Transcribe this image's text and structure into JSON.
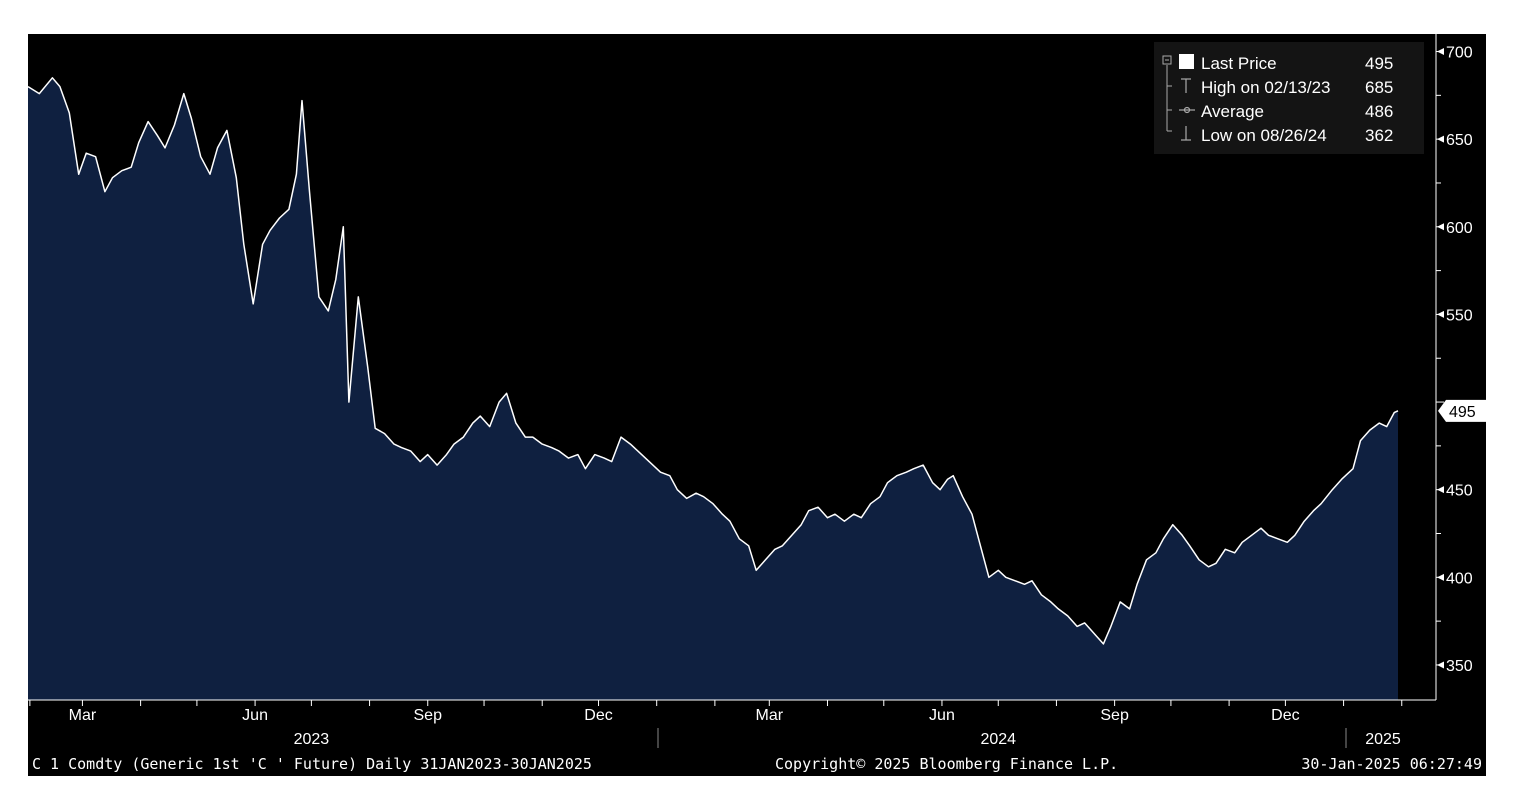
{
  "chart_data": {
    "type": "area",
    "title": "",
    "xlabel": "",
    "ylabel": "",
    "ylim": [
      330,
      710
    ],
    "y_ticks": [
      350,
      400,
      450,
      550,
      600,
      650,
      700
    ],
    "grid": false,
    "legend_position": "top-right",
    "colors": {
      "background": "#000000",
      "fill": "#0f2040",
      "line": "#ffffff"
    },
    "x_month_labels": [
      {
        "date": "2023-03-01",
        "label": "Mar"
      },
      {
        "date": "2023-06-01",
        "label": "Jun"
      },
      {
        "date": "2023-09-01",
        "label": "Sep"
      },
      {
        "date": "2023-12-01",
        "label": "Dec"
      },
      {
        "date": "2024-03-01",
        "label": "Mar"
      },
      {
        "date": "2024-06-01",
        "label": "Jun"
      },
      {
        "date": "2024-09-01",
        "label": "Sep"
      },
      {
        "date": "2024-12-01",
        "label": "Dec"
      }
    ],
    "x_year_labels": [
      {
        "date": "2023-07-01",
        "label": "2023"
      },
      {
        "date": "2024-07-01",
        "label": "2024"
      },
      {
        "date": "2025-01-22",
        "label": "2025"
      }
    ],
    "last_price_tag": "495",
    "legend": [
      {
        "label": "Last Price",
        "value": "495"
      },
      {
        "label": "High on 02/13/23",
        "value": "685"
      },
      {
        "label": "Average",
        "value": "486"
      },
      {
        "label": "Low on 08/26/24",
        "value": "362"
      }
    ],
    "series": [
      {
        "name": "Last Price",
        "points": [
          [
            "2023-01-31",
            680
          ],
          [
            "2023-02-06",
            676
          ],
          [
            "2023-02-13",
            685
          ],
          [
            "2023-02-17",
            680
          ],
          [
            "2023-02-22",
            665
          ],
          [
            "2023-02-27",
            630
          ],
          [
            "2023-03-03",
            642
          ],
          [
            "2023-03-08",
            640
          ],
          [
            "2023-03-13",
            620
          ],
          [
            "2023-03-17",
            628
          ],
          [
            "2023-03-22",
            632
          ],
          [
            "2023-03-27",
            634
          ],
          [
            "2023-03-31",
            648
          ],
          [
            "2023-04-05",
            660
          ],
          [
            "2023-04-10",
            652
          ],
          [
            "2023-04-14",
            645
          ],
          [
            "2023-04-19",
            658
          ],
          [
            "2023-04-24",
            676
          ],
          [
            "2023-04-28",
            662
          ],
          [
            "2023-05-03",
            640
          ],
          [
            "2023-05-08",
            630
          ],
          [
            "2023-05-12",
            645
          ],
          [
            "2023-05-17",
            655
          ],
          [
            "2023-05-22",
            628
          ],
          [
            "2023-05-26",
            590
          ],
          [
            "2023-05-31",
            556
          ],
          [
            "2023-06-05",
            590
          ],
          [
            "2023-06-09",
            598
          ],
          [
            "2023-06-14",
            605
          ],
          [
            "2023-06-19",
            610
          ],
          [
            "2023-06-23",
            630
          ],
          [
            "2023-06-26",
            672
          ],
          [
            "2023-06-30",
            620
          ],
          [
            "2023-07-05",
            560
          ],
          [
            "2023-07-10",
            552
          ],
          [
            "2023-07-14",
            570
          ],
          [
            "2023-07-18",
            600
          ],
          [
            "2023-07-21",
            500
          ],
          [
            "2023-07-26",
            560
          ],
          [
            "2023-07-31",
            520
          ],
          [
            "2023-08-04",
            485
          ],
          [
            "2023-08-09",
            482
          ],
          [
            "2023-08-14",
            476
          ],
          [
            "2023-08-18",
            474
          ],
          [
            "2023-08-23",
            472
          ],
          [
            "2023-08-28",
            466
          ],
          [
            "2023-09-01",
            470
          ],
          [
            "2023-09-06",
            464
          ],
          [
            "2023-09-11",
            470
          ],
          [
            "2023-09-15",
            476
          ],
          [
            "2023-09-20",
            480
          ],
          [
            "2023-09-25",
            488
          ],
          [
            "2023-09-29",
            492
          ],
          [
            "2023-10-04",
            486
          ],
          [
            "2023-10-09",
            500
          ],
          [
            "2023-10-13",
            505
          ],
          [
            "2023-10-18",
            488
          ],
          [
            "2023-10-23",
            480
          ],
          [
            "2023-10-27",
            480
          ],
          [
            "2023-11-01",
            476
          ],
          [
            "2023-11-06",
            474
          ],
          [
            "2023-11-10",
            472
          ],
          [
            "2023-11-15",
            468
          ],
          [
            "2023-11-20",
            470
          ],
          [
            "2023-11-24",
            462
          ],
          [
            "2023-11-29",
            470
          ],
          [
            "2023-12-04",
            468
          ],
          [
            "2023-12-08",
            466
          ],
          [
            "2023-12-13",
            480
          ],
          [
            "2023-12-18",
            476
          ],
          [
            "2023-12-22",
            472
          ],
          [
            "2024-01-03",
            460
          ],
          [
            "2024-01-08",
            458
          ],
          [
            "2024-01-12",
            450
          ],
          [
            "2024-01-17",
            445
          ],
          [
            "2024-01-22",
            448
          ],
          [
            "2024-01-26",
            446
          ],
          [
            "2024-01-31",
            442
          ],
          [
            "2024-02-05",
            436
          ],
          [
            "2024-02-09",
            432
          ],
          [
            "2024-02-14",
            422
          ],
          [
            "2024-02-19",
            418
          ],
          [
            "2024-02-23",
            404
          ],
          [
            "2024-02-28",
            410
          ],
          [
            "2024-03-04",
            416
          ],
          [
            "2024-03-08",
            418
          ],
          [
            "2024-03-13",
            424
          ],
          [
            "2024-03-18",
            430
          ],
          [
            "2024-03-22",
            438
          ],
          [
            "2024-03-27",
            440
          ],
          [
            "2024-04-01",
            434
          ],
          [
            "2024-04-05",
            436
          ],
          [
            "2024-04-10",
            432
          ],
          [
            "2024-04-15",
            436
          ],
          [
            "2024-04-19",
            434
          ],
          [
            "2024-04-24",
            442
          ],
          [
            "2024-04-29",
            446
          ],
          [
            "2024-05-03",
            454
          ],
          [
            "2024-05-08",
            458
          ],
          [
            "2024-05-13",
            460
          ],
          [
            "2024-05-17",
            462
          ],
          [
            "2024-05-22",
            464
          ],
          [
            "2024-05-27",
            454
          ],
          [
            "2024-05-31",
            450
          ],
          [
            "2024-06-04",
            456
          ],
          [
            "2024-06-07",
            458
          ],
          [
            "2024-06-12",
            446
          ],
          [
            "2024-06-17",
            436
          ],
          [
            "2024-06-21",
            420
          ],
          [
            "2024-06-26",
            400
          ],
          [
            "2024-07-01",
            404
          ],
          [
            "2024-07-05",
            400
          ],
          [
            "2024-07-10",
            398
          ],
          [
            "2024-07-15",
            396
          ],
          [
            "2024-07-19",
            398
          ],
          [
            "2024-07-24",
            390
          ],
          [
            "2024-07-29",
            386
          ],
          [
            "2024-08-02",
            382
          ],
          [
            "2024-08-07",
            378
          ],
          [
            "2024-08-12",
            372
          ],
          [
            "2024-08-16",
            374
          ],
          [
            "2024-08-21",
            368
          ],
          [
            "2024-08-26",
            362
          ],
          [
            "2024-08-30",
            372
          ],
          [
            "2024-09-04",
            386
          ],
          [
            "2024-09-09",
            382
          ],
          [
            "2024-09-13",
            396
          ],
          [
            "2024-09-18",
            410
          ],
          [
            "2024-09-23",
            414
          ],
          [
            "2024-09-27",
            422
          ],
          [
            "2024-10-02",
            430
          ],
          [
            "2024-10-07",
            424
          ],
          [
            "2024-10-11",
            418
          ],
          [
            "2024-10-16",
            410
          ],
          [
            "2024-10-21",
            406
          ],
          [
            "2024-10-25",
            408
          ],
          [
            "2024-10-30",
            416
          ],
          [
            "2024-11-04",
            414
          ],
          [
            "2024-11-08",
            420
          ],
          [
            "2024-11-13",
            424
          ],
          [
            "2024-11-18",
            428
          ],
          [
            "2024-11-22",
            424
          ],
          [
            "2024-11-27",
            422
          ],
          [
            "2024-12-02",
            420
          ],
          [
            "2024-12-06",
            424
          ],
          [
            "2024-12-11",
            432
          ],
          [
            "2024-12-16",
            438
          ],
          [
            "2024-12-20",
            442
          ],
          [
            "2024-12-26",
            450
          ],
          [
            "2024-12-31",
            456
          ],
          [
            "2025-01-06",
            462
          ],
          [
            "2025-01-10",
            478
          ],
          [
            "2025-01-15",
            484
          ],
          [
            "2025-01-20",
            488
          ],
          [
            "2025-01-24",
            486
          ],
          [
            "2025-01-28",
            494
          ],
          [
            "2025-01-30",
            495
          ]
        ]
      }
    ]
  },
  "footer": {
    "security": "C 1 Comdty (Generic 1st 'C ' Future)  Daily 31JAN2023-30JAN2025",
    "copyright": "Copyright© 2025 Bloomberg Finance L.P.",
    "timestamp": "30-Jan-2025 06:27:49"
  }
}
